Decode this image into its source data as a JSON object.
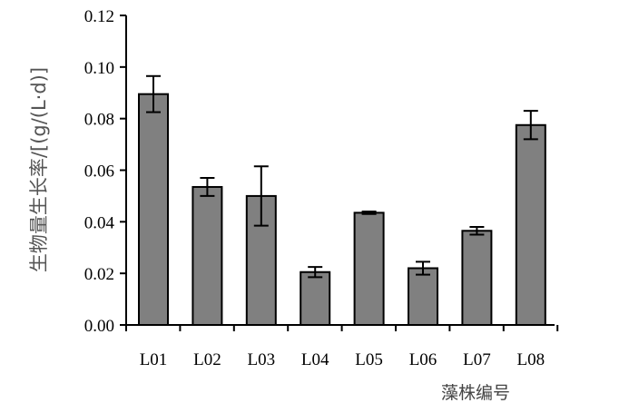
{
  "chart_data": {
    "type": "bar",
    "categories": [
      "L01",
      "L02",
      "L03",
      "L04",
      "L05",
      "L06",
      "L07",
      "L08"
    ],
    "values": [
      0.0895,
      0.0535,
      0.05,
      0.0205,
      0.0435,
      0.022,
      0.0365,
      0.0775
    ],
    "errors": [
      0.007,
      0.0035,
      0.0115,
      0.002,
      0.0005,
      0.0025,
      0.0015,
      0.0055
    ],
    "xlabel": "藻株编号",
    "ylabel": "生物量生长率/[(g/(L·d)]",
    "ylim": [
      0,
      0.12
    ],
    "yticks": [
      "0.00",
      "0.02",
      "0.04",
      "0.06",
      "0.08",
      "0.10",
      "0.12"
    ],
    "bar_color": "#808080",
    "edge_color": "#000000",
    "grid": false,
    "legend": "none"
  }
}
